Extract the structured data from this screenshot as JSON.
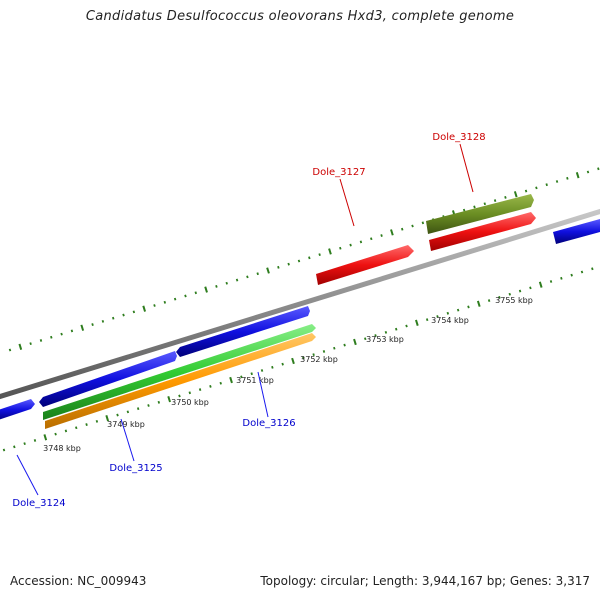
{
  "title": "Candidatus Desulfococcus oleovorans Hxd3, complete genome",
  "footer": {
    "accession": "Accession: NC_009943",
    "summary": "Topology: circular; Length: 3,944,167 bp; Genes: 3,317"
  },
  "colors": {
    "backbone": "#8c8c8c",
    "ticks": "#2e7d1e",
    "blue_gene": "#1010e0",
    "red_gene": "#ee1111",
    "olive_gene": "#6b8e23",
    "green_gene": "#33cc33",
    "orange_gene": "#ff9900",
    "label_blue": "#0000cc",
    "label_red": "#cc0000"
  },
  "scale_labels": [
    "3748 kbp",
    "3749 kbp",
    "3750 kbp",
    "3751 kbp",
    "3752 kbp",
    "3753 kbp",
    "3754 kbp",
    "3755 kbp"
  ],
  "genes": [
    {
      "label": "Dole_3124",
      "color": "label_blue"
    },
    {
      "label": "Dole_3125",
      "color": "label_blue"
    },
    {
      "label": "Dole_3126",
      "color": "label_blue"
    },
    {
      "label": "Dole_3127",
      "color": "label_red"
    },
    {
      "label": "Dole_3128",
      "color": "label_red"
    }
  ]
}
